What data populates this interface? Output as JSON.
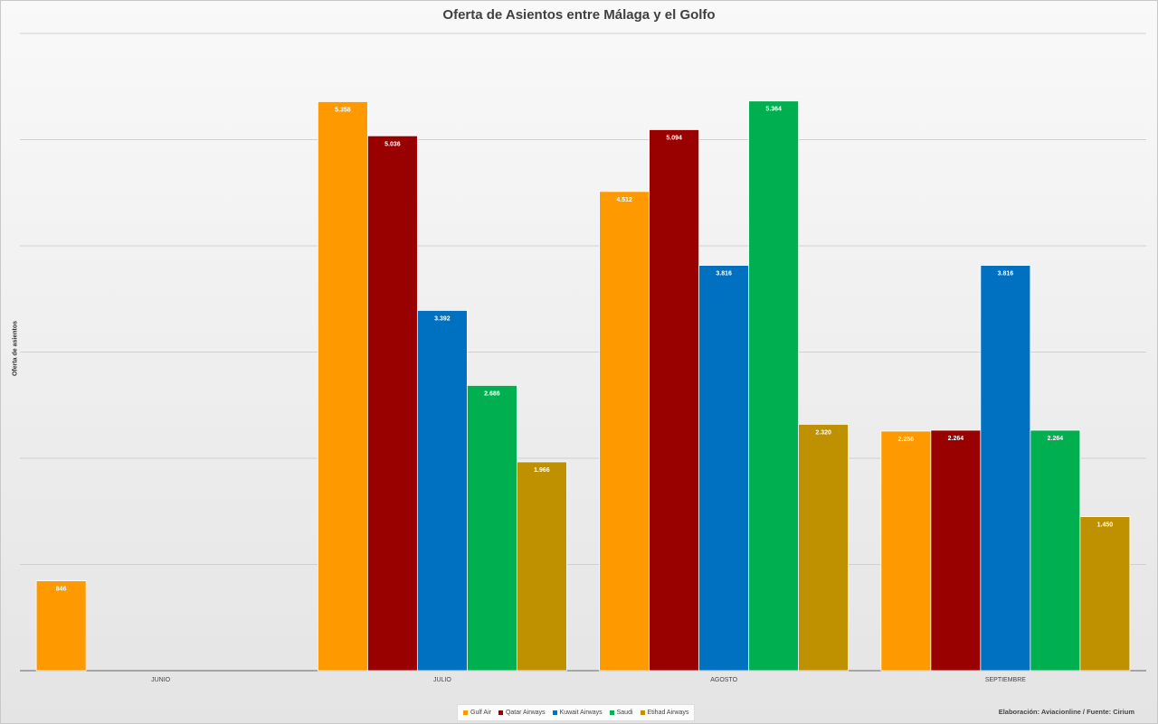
{
  "chart_data": {
    "type": "bar",
    "title": "Oferta de Asientos entre Málaga y el Golfo",
    "xlabel": "",
    "ylabel": "Oferta de asientos",
    "ylim": [
      0,
      6000
    ],
    "grid": true,
    "legend_position": "bottom",
    "categories": [
      "JUNIO",
      "JULIO",
      "AGOSTO",
      "SEPTIEMBRE"
    ],
    "series": [
      {
        "name": "Gulf Air",
        "color": "#ff9900",
        "values": [
          846,
          5358,
          4512,
          2256
        ],
        "labels": [
          "846",
          "5.358",
          "4.512",
          "2.256"
        ]
      },
      {
        "name": "Qatar Airways",
        "color": "#990000",
        "values": [
          null,
          5036,
          5094,
          2264
        ],
        "labels": [
          "",
          "5.036",
          "5.094",
          "2.264"
        ]
      },
      {
        "name": "Kuwait Airways",
        "color": "#0070c0",
        "values": [
          null,
          3392,
          3816,
          3816
        ],
        "labels": [
          "",
          "3.392",
          "3.816",
          "3.816"
        ]
      },
      {
        "name": "Saudi",
        "color": "#00b050",
        "values": [
          null,
          2686,
          5364,
          2264
        ],
        "labels": [
          "",
          "2.686",
          "5.364",
          "2.264"
        ]
      },
      {
        "name": "Etihad Airways",
        "color": "#bf9000",
        "values": [
          null,
          1966,
          2320,
          1450
        ],
        "labels": [
          "",
          "1.966",
          "2.320",
          "1.450"
        ]
      }
    ]
  },
  "footer": {
    "credit": "Elaboración: Aviacionline / Fuente: Cirium"
  }
}
